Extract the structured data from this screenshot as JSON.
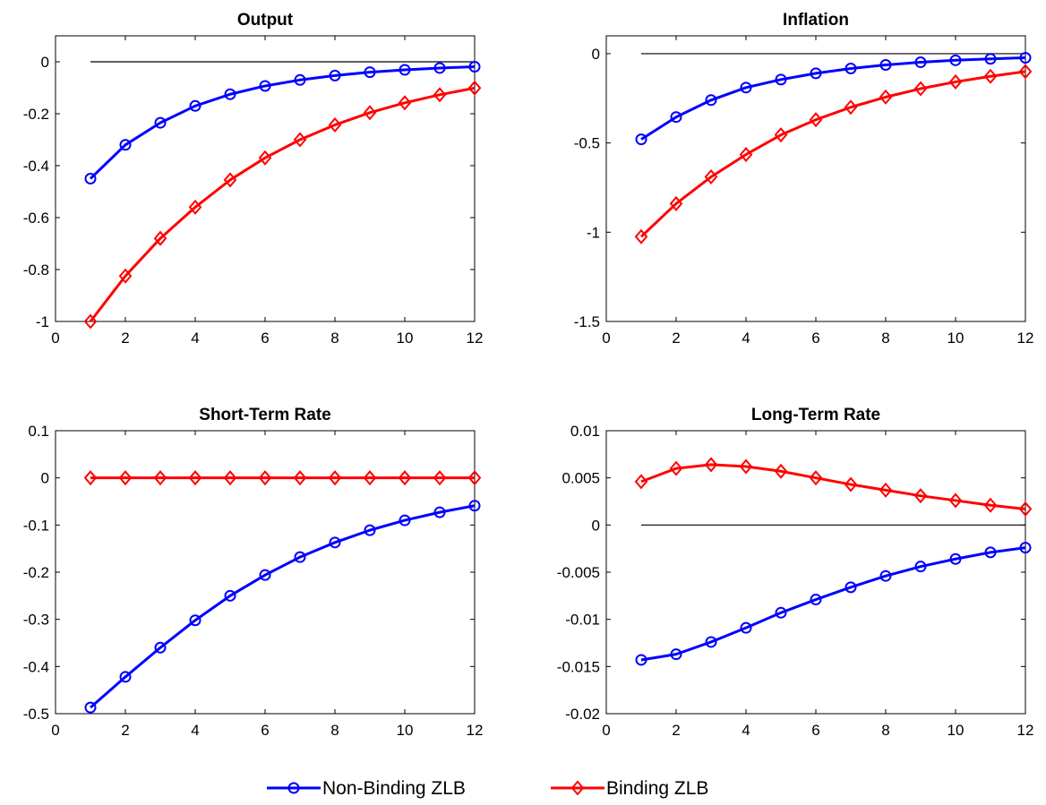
{
  "chart_data": [
    {
      "type": "line",
      "title": "Output",
      "xlabel": "",
      "ylabel": "",
      "xlim": [
        0,
        12
      ],
      "ylim": [
        -1,
        0.1
      ],
      "xticks": [
        0,
        2,
        4,
        6,
        8,
        10,
        12
      ],
      "yticks": [
        -1,
        -0.8,
        -0.6,
        -0.4,
        -0.2,
        0
      ],
      "ytick_labels": [
        "-1",
        "-0.8",
        "-0.6",
        "-0.4",
        "-0.2",
        "0"
      ],
      "zero_line": true,
      "x": [
        1,
        2,
        3,
        4,
        5,
        6,
        7,
        8,
        9,
        10,
        11,
        12
      ],
      "series": [
        {
          "name": "Non-Binding ZLB",
          "color": "#0000ff",
          "marker": "circle",
          "values": [
            -0.45,
            -0.32,
            -0.235,
            -0.17,
            -0.125,
            -0.093,
            -0.07,
            -0.053,
            -0.04,
            -0.031,
            -0.024,
            -0.019
          ]
        },
        {
          "name": "Binding ZLB",
          "color": "#ff0000",
          "marker": "diamond",
          "values": [
            -1.0,
            -0.825,
            -0.68,
            -0.56,
            -0.455,
            -0.37,
            -0.3,
            -0.243,
            -0.196,
            -0.158,
            -0.127,
            -0.101
          ]
        }
      ]
    },
    {
      "type": "line",
      "title": "Inflation",
      "xlabel": "",
      "ylabel": "",
      "xlim": [
        0,
        12
      ],
      "ylim": [
        -1.5,
        0.1
      ],
      "xticks": [
        0,
        2,
        4,
        6,
        8,
        10,
        12
      ],
      "yticks": [
        -1.5,
        -1,
        -0.5,
        0
      ],
      "ytick_labels": [
        "-1.5",
        "-1",
        "-0.5",
        "0"
      ],
      "zero_line": true,
      "x": [
        1,
        2,
        3,
        4,
        5,
        6,
        7,
        8,
        9,
        10,
        11,
        12
      ],
      "series": [
        {
          "name": "Non-Binding ZLB",
          "color": "#0000ff",
          "marker": "circle",
          "values": [
            -0.48,
            -0.355,
            -0.26,
            -0.19,
            -0.145,
            -0.11,
            -0.083,
            -0.063,
            -0.048,
            -0.037,
            -0.029,
            -0.023
          ]
        },
        {
          "name": "Binding ZLB",
          "color": "#ff0000",
          "marker": "diamond",
          "values": [
            -1.025,
            -0.84,
            -0.69,
            -0.565,
            -0.455,
            -0.37,
            -0.3,
            -0.243,
            -0.196,
            -0.158,
            -0.127,
            -0.1
          ]
        }
      ]
    },
    {
      "type": "line",
      "title": "Short-Term Rate",
      "xlabel": "",
      "ylabel": "",
      "xlim": [
        0,
        12
      ],
      "ylim": [
        -0.5,
        0.1
      ],
      "xticks": [
        0,
        2,
        4,
        6,
        8,
        10,
        12
      ],
      "yticks": [
        -0.5,
        -0.4,
        -0.3,
        -0.2,
        -0.1,
        0,
        0.1
      ],
      "ytick_labels": [
        "-0.5",
        "-0.4",
        "-0.3",
        "-0.2",
        "-0.1",
        "0",
        "0.1"
      ],
      "zero_line": true,
      "x": [
        1,
        2,
        3,
        4,
        5,
        6,
        7,
        8,
        9,
        10,
        11,
        12
      ],
      "series": [
        {
          "name": "Non-Binding ZLB",
          "color": "#0000ff",
          "marker": "circle",
          "values": [
            -0.487,
            -0.422,
            -0.36,
            -0.302,
            -0.25,
            -0.206,
            -0.168,
            -0.137,
            -0.111,
            -0.09,
            -0.073,
            -0.059
          ]
        },
        {
          "name": "Binding ZLB",
          "color": "#ff0000",
          "marker": "diamond",
          "values": [
            0,
            0,
            0,
            0,
            0,
            0,
            0,
            0,
            0,
            0,
            0,
            0
          ]
        }
      ]
    },
    {
      "type": "line",
      "title": "Long-Term Rate",
      "xlabel": "",
      "ylabel": "",
      "xlim": [
        0,
        12
      ],
      "ylim": [
        -0.02,
        0.01
      ],
      "xticks": [
        0,
        2,
        4,
        6,
        8,
        10,
        12
      ],
      "yticks": [
        -0.02,
        -0.015,
        -0.01,
        -0.005,
        0,
        0.005,
        0.01
      ],
      "ytick_labels": [
        "-0.02",
        "-0.015",
        "-0.01",
        "-0.005",
        "0",
        "0.005",
        "0.01"
      ],
      "zero_line": true,
      "x": [
        1,
        2,
        3,
        4,
        5,
        6,
        7,
        8,
        9,
        10,
        11,
        12
      ],
      "series": [
        {
          "name": "Non-Binding ZLB",
          "color": "#0000ff",
          "marker": "circle",
          "values": [
            -0.0143,
            -0.0137,
            -0.0124,
            -0.0109,
            -0.0093,
            -0.0079,
            -0.0066,
            -0.0054,
            -0.0044,
            -0.0036,
            -0.0029,
            -0.0024
          ]
        },
        {
          "name": "Binding ZLB",
          "color": "#ff0000",
          "marker": "diamond",
          "values": [
            0.0046,
            0.006,
            0.0064,
            0.0062,
            0.0057,
            0.005,
            0.0043,
            0.0037,
            0.0031,
            0.0026,
            0.0021,
            0.0017
          ]
        }
      ]
    }
  ],
  "legend": {
    "placement": "bottom-center",
    "items": [
      {
        "label": "Non-Binding ZLB",
        "color": "#0000ff",
        "marker": "circle"
      },
      {
        "label": "Binding ZLB",
        "color": "#ff0000",
        "marker": "diamond"
      }
    ]
  }
}
